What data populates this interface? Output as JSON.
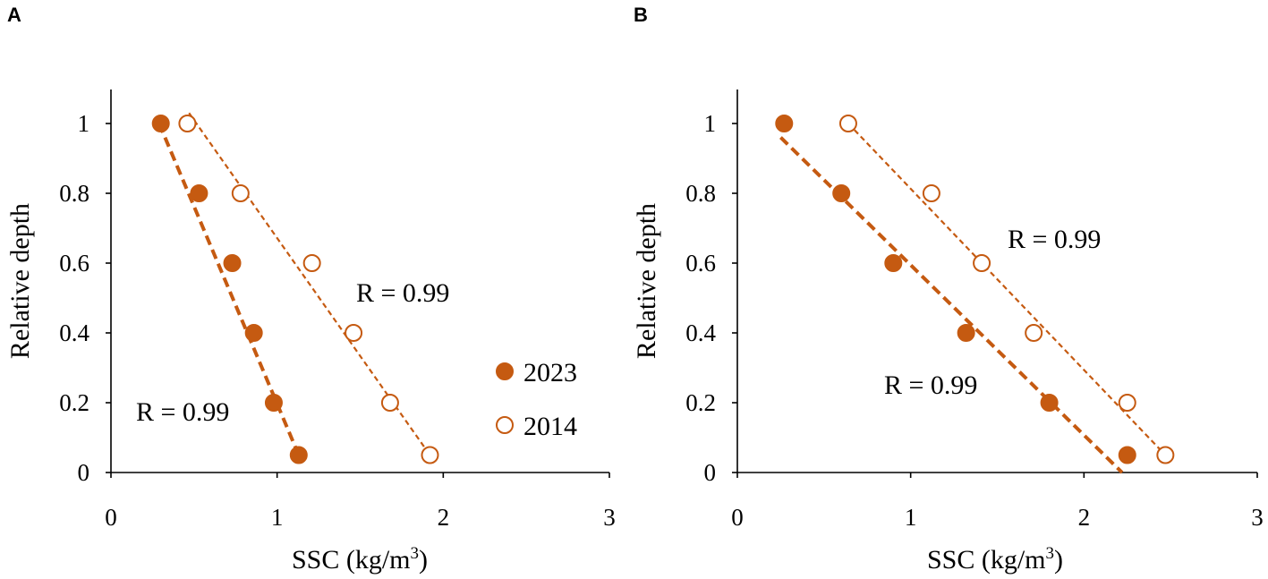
{
  "colors": {
    "accent": "#C55A11",
    "axis": "#000000"
  },
  "legend": {
    "series_2023": "2023",
    "series_2014": "2014"
  },
  "chart_data": [
    {
      "panel": "A",
      "type": "scatter",
      "xlabel_prefix": "SSC (kg/m",
      "xlabel_sup": "3",
      "xlabel_suffix": ")",
      "ylabel": "Relative depth",
      "xlim": [
        0,
        3
      ],
      "ylim": [
        0,
        1.1
      ],
      "xticks": [
        "0",
        "1",
        "2",
        "3"
      ],
      "yticks": [
        "0",
        "0.2",
        "0.4",
        "0.6",
        "0.8",
        "1"
      ],
      "series": [
        {
          "name": "2023",
          "marker": "filled",
          "x": [
            0.3,
            0.53,
            0.73,
            0.86,
            0.98,
            1.13
          ],
          "y": [
            1.0,
            0.8,
            0.6,
            0.4,
            0.2,
            0.05
          ],
          "fit": {
            "x": [
              0.29,
              1.13
            ],
            "y": [
              1.0,
              0.05
            ]
          },
          "annotation": "R = 0.99"
        },
        {
          "name": "2014",
          "marker": "open",
          "x": [
            0.46,
            0.78,
            1.21,
            1.46,
            1.68,
            1.92
          ],
          "y": [
            1.0,
            0.8,
            0.6,
            0.4,
            0.2,
            0.05
          ],
          "fit": {
            "x": [
              0.47,
              1.92
            ],
            "y": [
              1.03,
              0.05
            ]
          },
          "annotation": "R = 0.99"
        }
      ]
    },
    {
      "panel": "B",
      "type": "scatter",
      "xlabel_prefix": "SSC (kg/m",
      "xlabel_sup": "3",
      "xlabel_suffix": ")",
      "ylabel": "Relative depth",
      "xlim": [
        0,
        3
      ],
      "ylim": [
        0,
        1.1
      ],
      "xticks": [
        "0",
        "1",
        "2",
        "3"
      ],
      "yticks": [
        "0",
        "0.2",
        "0.4",
        "0.6",
        "0.8",
        "1"
      ],
      "series": [
        {
          "name": "2023",
          "marker": "filled",
          "x": [
            0.27,
            0.6,
            0.9,
            1.32,
            1.8,
            2.25
          ],
          "y": [
            1.0,
            0.8,
            0.6,
            0.4,
            0.2,
            0.05
          ],
          "fit": {
            "x": [
              0.25,
              2.22
            ],
            "y": [
              0.96,
              0.0
            ]
          },
          "annotation": "R = 0.99"
        },
        {
          "name": "2014",
          "marker": "open",
          "x": [
            0.64,
            1.12,
            1.41,
            1.71,
            2.25,
            2.47
          ],
          "y": [
            1.0,
            0.8,
            0.6,
            0.4,
            0.2,
            0.05
          ],
          "fit": {
            "x": [
              0.64,
              2.47
            ],
            "y": [
              1.0,
              0.05
            ]
          },
          "annotation": "R = 0.99"
        }
      ]
    }
  ]
}
